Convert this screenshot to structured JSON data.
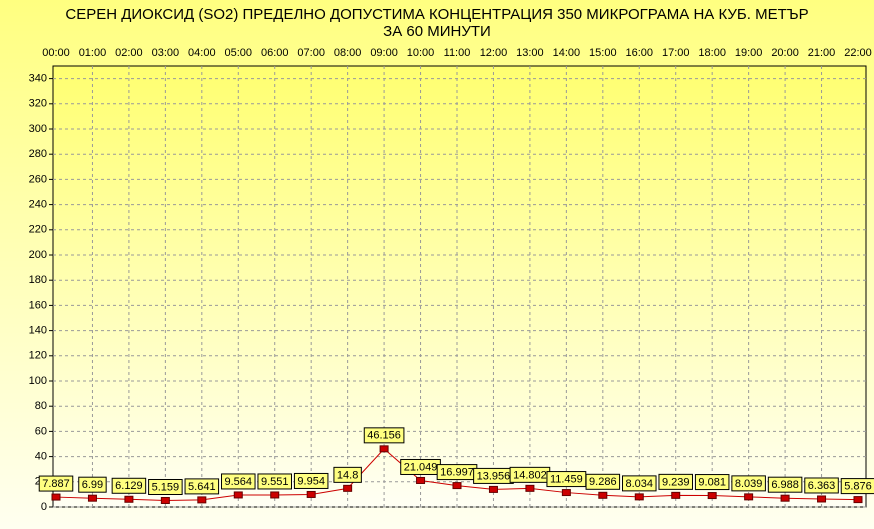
{
  "chart_data": {
    "type": "line",
    "title": "СЕРЕН ДИОКСИД  (SO2)  ПРЕДЕЛНО ДОПУСТИМА КОНЦЕНТРАЦИЯ 350 МИКРОГРАМА  НА КУБ. МЕТЪР",
    "subtitle": "ЗА 60 МИНУТИ",
    "categories": [
      "00:00",
      "01:00",
      "02:00",
      "03:00",
      "04:00",
      "05:00",
      "06:00",
      "07:00",
      "08:00",
      "09:00",
      "10:00",
      "11:00",
      "12:00",
      "13:00",
      "14:00",
      "15:00",
      "16:00",
      "17:00",
      "18:00",
      "19:00",
      "20:00",
      "21:00",
      "22:00"
    ],
    "values": [
      7.887,
      6.99,
      6.129,
      5.159,
      5.641,
      9.564,
      9.551,
      9.954,
      14.8,
      46.156,
      21.049,
      16.997,
      13.956,
      14.802,
      11.459,
      9.286,
      8.034,
      9.239,
      9.081,
      8.039,
      6.988,
      6.363,
      5.876
    ],
    "color": "#cc0000",
    "ylim": [
      0,
      350
    ],
    "yticks": [
      0,
      20,
      40,
      60,
      80,
      100,
      120,
      140,
      160,
      180,
      200,
      220,
      240,
      260,
      280,
      300,
      320,
      340
    ],
    "grid": true
  }
}
